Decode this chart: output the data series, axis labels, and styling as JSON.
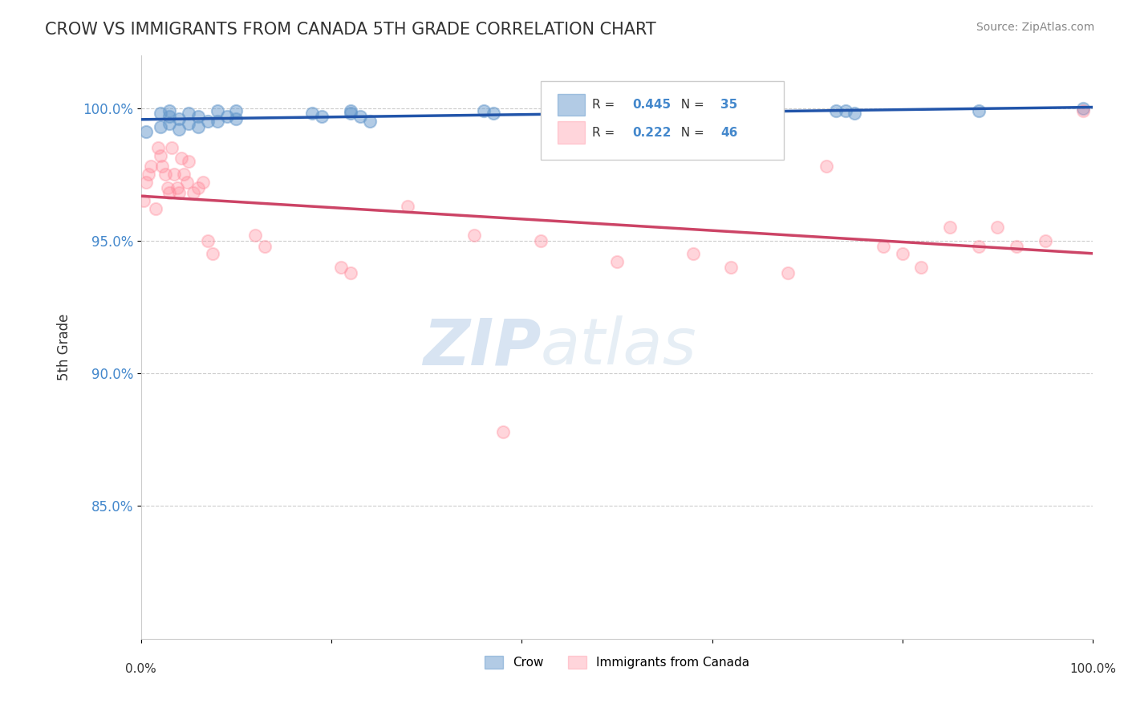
{
  "title": "CROW VS IMMIGRANTS FROM CANADA 5TH GRADE CORRELATION CHART",
  "source": "Source: ZipAtlas.com",
  "ylabel": "5th Grade",
  "xlim": [
    0.0,
    1.0
  ],
  "ylim": [
    0.8,
    1.02
  ],
  "ytick_labels": [
    "85.0%",
    "90.0%",
    "95.0%",
    "100.0%"
  ],
  "ytick_values": [
    0.85,
    0.9,
    0.95,
    1.0
  ],
  "grid_color": "#cccccc",
  "background_color": "#ffffff",
  "crow_color": "#6699cc",
  "immigrants_color": "#ff8899",
  "crow_line_color": "#2255aa",
  "immigrants_line_color": "#cc4466",
  "crow_R": 0.445,
  "crow_N": 35,
  "immigrants_R": 0.222,
  "immigrants_N": 46,
  "crow_x": [
    0.005,
    0.02,
    0.02,
    0.03,
    0.03,
    0.03,
    0.04,
    0.04,
    0.05,
    0.05,
    0.06,
    0.06,
    0.07,
    0.08,
    0.08,
    0.09,
    0.1,
    0.1,
    0.18,
    0.19,
    0.22,
    0.22,
    0.23,
    0.24,
    0.36,
    0.37,
    0.51,
    0.52,
    0.62,
    0.63,
    0.73,
    0.74,
    0.75,
    0.88,
    0.99
  ],
  "crow_y": [
    0.991,
    0.998,
    0.993,
    0.999,
    0.997,
    0.994,
    0.996,
    0.992,
    0.998,
    0.994,
    0.993,
    0.997,
    0.995,
    0.999,
    0.995,
    0.997,
    0.999,
    0.996,
    0.998,
    0.997,
    0.999,
    0.998,
    0.997,
    0.995,
    0.999,
    0.998,
    0.999,
    0.998,
    0.999,
    0.998,
    0.999,
    0.999,
    0.998,
    0.999,
    1.0
  ],
  "immigrants_x": [
    0.003,
    0.005,
    0.008,
    0.01,
    0.015,
    0.018,
    0.02,
    0.022,
    0.025,
    0.028,
    0.03,
    0.032,
    0.035,
    0.038,
    0.04,
    0.042,
    0.045,
    0.048,
    0.05,
    0.055,
    0.06,
    0.065,
    0.07,
    0.075,
    0.12,
    0.13,
    0.21,
    0.22,
    0.28,
    0.35,
    0.38,
    0.42,
    0.5,
    0.58,
    0.62,
    0.68,
    0.72,
    0.78,
    0.8,
    0.82,
    0.85,
    0.88,
    0.9,
    0.92,
    0.95,
    0.99
  ],
  "immigrants_y": [
    0.965,
    0.972,
    0.975,
    0.978,
    0.962,
    0.985,
    0.982,
    0.978,
    0.975,
    0.97,
    0.968,
    0.985,
    0.975,
    0.97,
    0.968,
    0.981,
    0.975,
    0.972,
    0.98,
    0.968,
    0.97,
    0.972,
    0.95,
    0.945,
    0.952,
    0.948,
    0.94,
    0.938,
    0.963,
    0.952,
    0.878,
    0.95,
    0.942,
    0.945,
    0.94,
    0.938,
    0.978,
    0.948,
    0.945,
    0.94,
    0.955,
    0.948,
    0.955,
    0.948,
    0.95,
    0.999
  ],
  "watermark_zip": "ZIP",
  "watermark_atlas": "atlas",
  "marker_size": 120,
  "value_color": "#4488cc",
  "label_color": "#333333",
  "tick_color": "#4488cc",
  "source_color": "#888888"
}
